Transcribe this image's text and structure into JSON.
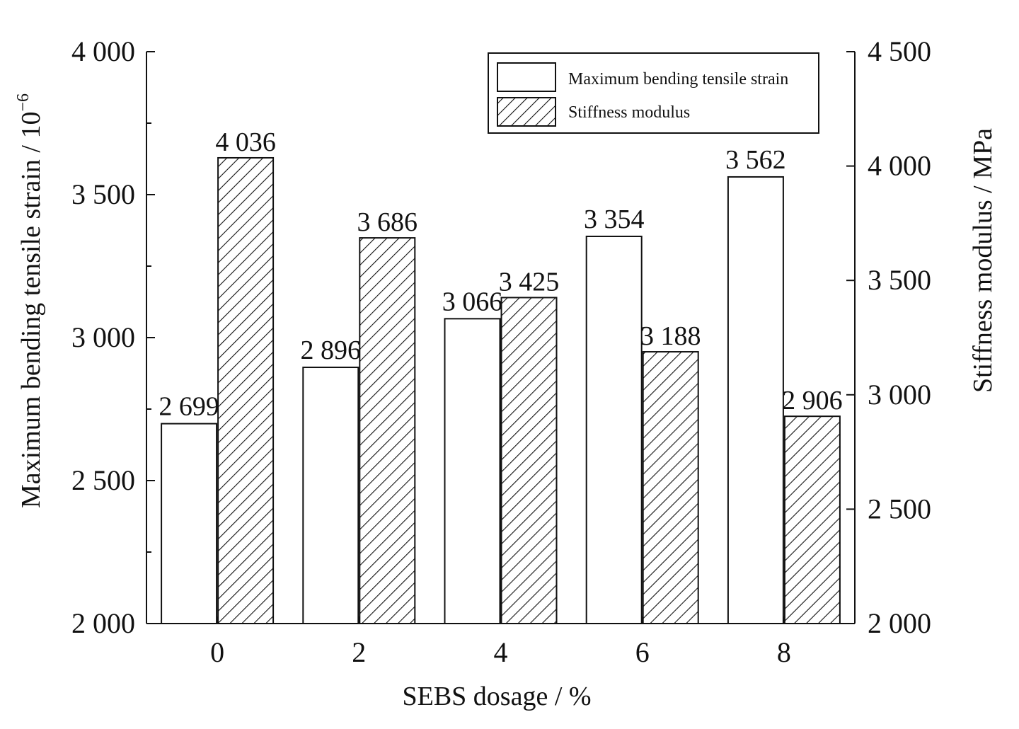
{
  "chart_data": {
    "type": "bar",
    "title": "",
    "xlabel": "SEBS dosage / %",
    "ylabel_left": "Maximum bending tensile strain / 10",
    "ylabel_left_exponent": "−6",
    "ylabel_right": "Stiffness modulus / MPa",
    "categories": [
      "0",
      "2",
      "4",
      "6",
      "8"
    ],
    "ylim_left": [
      2000,
      4000
    ],
    "ylim_right": [
      2000,
      4500
    ],
    "yticks_left": [
      "2 000",
      "2 500",
      "3 000",
      "3 500",
      "4 000"
    ],
    "yticks_right": [
      "2 000",
      "2 500",
      "3 000",
      "3 500",
      "4 000",
      "4 500"
    ],
    "series": [
      {
        "name": "Maximum bending tensile strain",
        "axis": "left",
        "fill": "white",
        "values": [
          2699,
          2896,
          3066,
          3354,
          3562
        ],
        "labels": [
          "2 699",
          "2 896",
          "3 066",
          "3 354",
          "3 562"
        ]
      },
      {
        "name": "Stiffness modulus",
        "axis": "right",
        "fill": "hatched",
        "values": [
          4036,
          3686,
          3425,
          3188,
          2906
        ],
        "labels": [
          "4 036",
          "3 686",
          "3 425",
          "3 188",
          "2 906"
        ]
      }
    ],
    "legend": "top-right",
    "grid": false,
    "colors": {
      "stroke": "#111111",
      "background": "#ffffff"
    }
  }
}
